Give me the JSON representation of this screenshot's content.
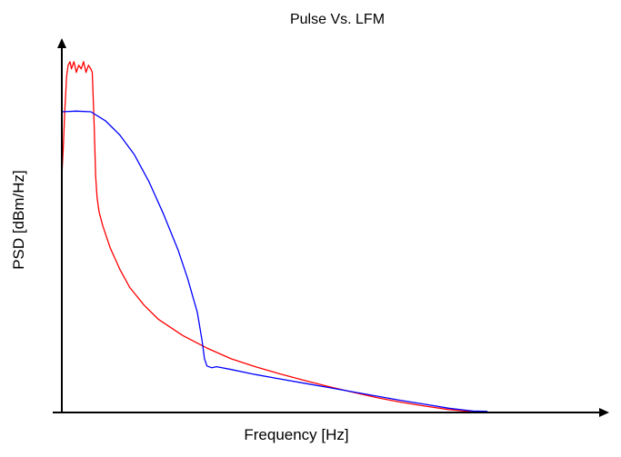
{
  "chart_data": {
    "type": "line",
    "title": "Pulse Vs. LFM",
    "xlabel": "Frequency [Hz]",
    "ylabel": "PSD [dBm/Hz]",
    "xlim": [
      0,
      100
    ],
    "ylim": [
      0,
      100
    ],
    "x_ticks": [],
    "y_ticks": [],
    "grid": false,
    "legend": "none",
    "series": [
      {
        "color": "#ff0000",
        "x": [
          0,
          0.3,
          0.6,
          1.0,
          1.3,
          1.7,
          2.0,
          2.5,
          3.0,
          3.5,
          4.0,
          4.5,
          5.0,
          5.5,
          6.0,
          6.3,
          6.7,
          7.0,
          7.3,
          7.7,
          8.5,
          10,
          12,
          14,
          17,
          20,
          25,
          30,
          35,
          40,
          45,
          50,
          55,
          60,
          65,
          70,
          75,
          80,
          85,
          88,
          89,
          89.5
        ],
        "y": [
          66,
          74,
          84,
          94,
          97,
          98,
          96,
          98,
          95,
          97,
          96,
          98,
          95,
          97,
          96,
          95,
          80,
          66,
          60,
          56,
          52,
          46,
          40,
          35,
          30,
          26,
          21.5,
          18,
          15,
          12.8,
          10.8,
          9,
          7.3,
          5.7,
          4.2,
          2.9,
          1.8,
          0.8,
          0.2,
          0,
          0,
          0
        ]
      },
      {
        "color": "#0000ff",
        "x": [
          0,
          3,
          6,
          9,
          12,
          15,
          18,
          21,
          24,
          26,
          28,
          29,
          29.5,
          30,
          31,
          32,
          35,
          40,
          45,
          50,
          55,
          60,
          65,
          70,
          75,
          80,
          85,
          88
        ],
        "y": [
          84,
          84.2,
          84,
          81.5,
          77.5,
          72,
          64.5,
          55.5,
          45.5,
          37.5,
          28,
          20,
          15,
          13,
          12.5,
          12.8,
          12,
          10.6,
          9.4,
          8.2,
          7,
          5.8,
          4.6,
          3.4,
          2.3,
          1.2,
          0.4,
          0.3
        ]
      }
    ]
  }
}
